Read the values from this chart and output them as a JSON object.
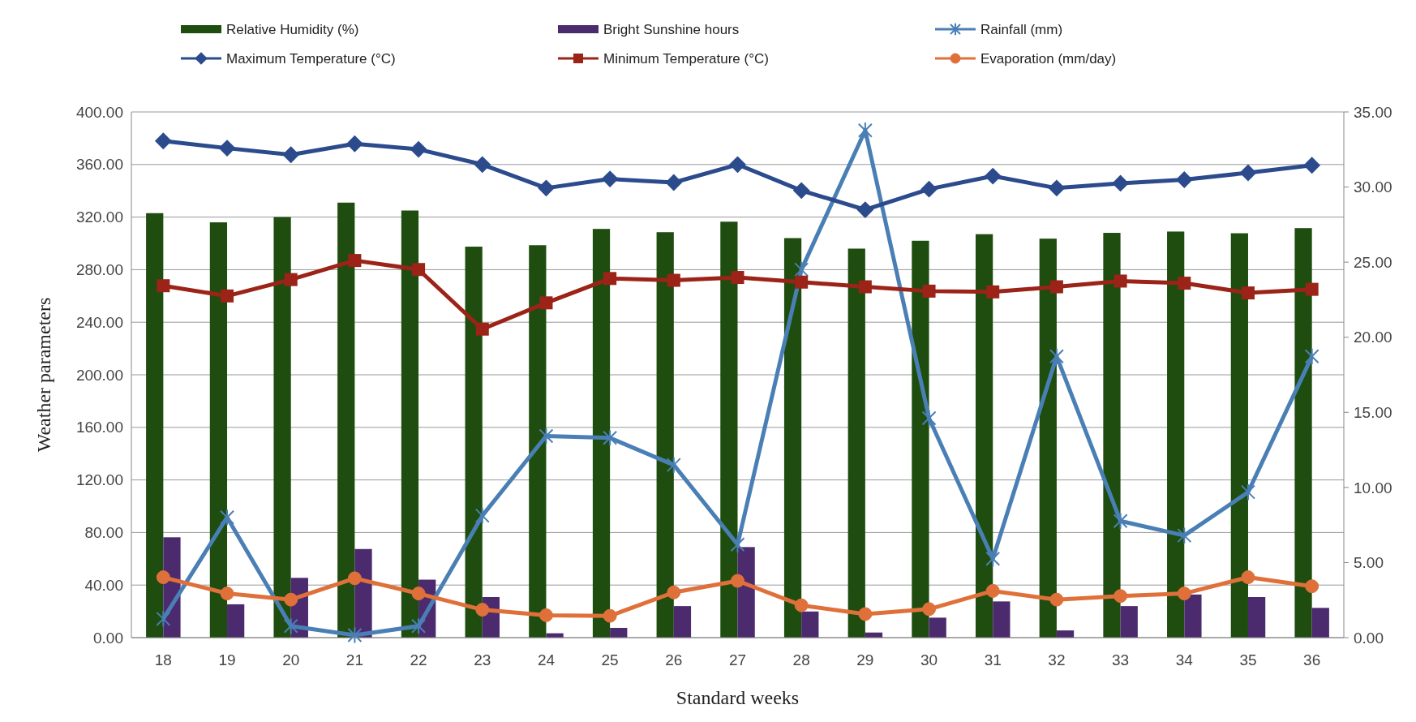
{
  "chart_data": {
    "type": "bar",
    "xlabel": "Standard weeks",
    "ylabel": "Weather parameters",
    "categories": [
      "18",
      "19",
      "20",
      "21",
      "22",
      "23",
      "24",
      "25",
      "26",
      "27",
      "28",
      "29",
      "30",
      "31",
      "32",
      "33",
      "34",
      "35",
      "36"
    ],
    "series": [
      {
        "name": "Relative Humidity (%)",
        "color": "#1e4d0f",
        "values": [
          323,
          316,
          320,
          331,
          325,
          297.5,
          298.6,
          311,
          308.5,
          316.5,
          304,
          296,
          302,
          307,
          303.6,
          308,
          309,
          307.7,
          311.6
        ]
      },
      {
        "name": "Bright Sunshine hours",
        "type": "bar",
        "axis": "y2",
        "color": "#4b2a6e",
        "values": [
          6.68,
          2.22,
          3.98,
          5.9,
          3.86,
          2.7,
          0.29,
          0.65,
          2.1,
          6.03,
          1.74,
          0.34,
          1.33,
          2.41,
          0.48,
          2.1,
          2.87,
          2.7,
          1.98
        ]
      },
      {
        "name": "Rainfall (mm)",
        "type": "line",
        "marker": "cross",
        "color": "#4a7fb5",
        "values": [
          14.3,
          91.5,
          8.8,
          1.9,
          8.8,
          92.8,
          153.4,
          152,
          131.4,
          70.8,
          280,
          386,
          167,
          60,
          214,
          88.7,
          77.7,
          110.7,
          214
        ]
      },
      {
        "name": "Maximum Temperature (°C)",
        "type": "line",
        "axis": "y2",
        "marker": "diamond",
        "color": "#2b4b8c",
        "values": [
          33.07,
          32.59,
          32.15,
          32.88,
          32.51,
          31.5,
          29.93,
          30.54,
          30.3,
          31.5,
          29.77,
          28.49,
          29.86,
          30.73,
          29.93,
          30.25,
          30.49,
          30.95,
          31.45
        ]
      },
      {
        "name": "Minimum Temperature (°C)",
        "type": "line",
        "axis": "y2",
        "marker": "square",
        "color": "#9b2318",
        "values": [
          23.43,
          22.75,
          23.84,
          25.11,
          24.51,
          20.54,
          22.29,
          23.91,
          23.79,
          23.98,
          23.67,
          23.36,
          23.07,
          23.02,
          23.36,
          23.74,
          23.6,
          22.95,
          23.19
        ]
      },
      {
        "name": "Evaporation (mm/day)",
        "type": "line",
        "axis": "y2",
        "marker": "circle",
        "color": "#e0703a",
        "values": [
          4.02,
          2.94,
          2.53,
          3.95,
          2.94,
          1.86,
          1.49,
          1.45,
          3.01,
          3.78,
          2.15,
          1.57,
          1.9,
          3.11,
          2.53,
          2.77,
          2.94,
          4.02,
          3.42
        ]
      }
    ],
    "ylim": [
      0,
      400
    ],
    "yticks": [
      {
        "value": 0,
        "label": "0.00"
      },
      {
        "value": 40,
        "label": "40.00"
      },
      {
        "value": 80,
        "label": "80.00"
      },
      {
        "value": 120,
        "label": "120.00"
      },
      {
        "value": 160,
        "label": "160.00"
      },
      {
        "value": 200,
        "label": "200.00"
      },
      {
        "value": 240,
        "label": "240.00"
      },
      {
        "value": 280,
        "label": "280.00"
      },
      {
        "value": 320,
        "label": "320.00"
      },
      {
        "value": 360,
        "label": "360.00"
      },
      {
        "value": 400,
        "label": "400.00"
      }
    ],
    "y2lim": [
      0,
      35
    ],
    "y2ticks": [
      {
        "value": 0,
        "label": "0.00"
      },
      {
        "value": 5,
        "label": "5.00"
      },
      {
        "value": 10,
        "label": "10.00"
      },
      {
        "value": 15,
        "label": "15.00"
      },
      {
        "value": 20,
        "label": "20.00"
      },
      {
        "value": 25,
        "label": "25.00"
      },
      {
        "value": 30,
        "label": "30.00"
      },
      {
        "value": 35,
        "label": "35.00"
      }
    ],
    "grid": "y",
    "legend": "top"
  }
}
